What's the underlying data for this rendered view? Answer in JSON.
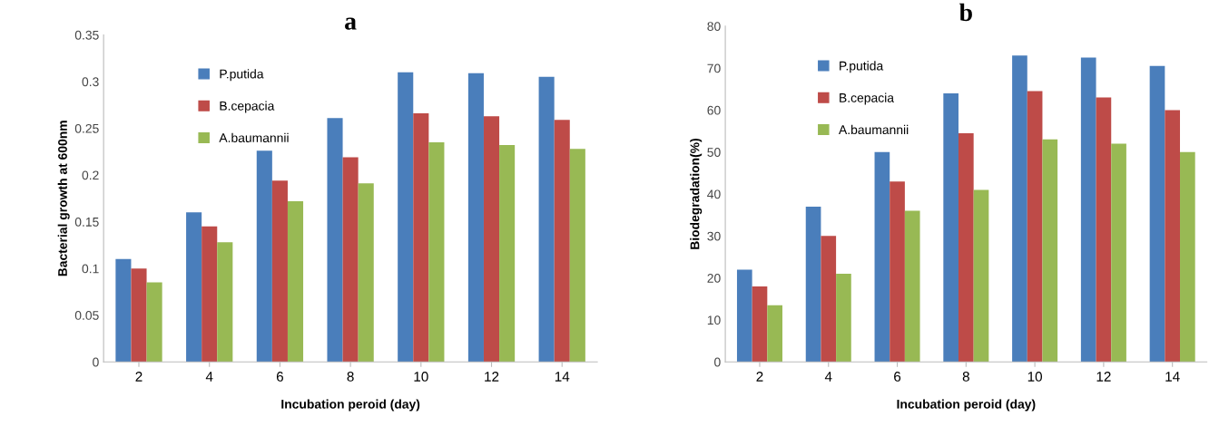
{
  "chart_data": [
    {
      "type": "bar",
      "title": "a",
      "xlabel": "Incubation peroid (day)",
      "ylabel": "Bacterial growth at 600nm",
      "categories": [
        "2",
        "4",
        "6",
        "8",
        "10",
        "12",
        "14"
      ],
      "series": [
        {
          "name": "P.putida",
          "color": "#4a7ebb",
          "values": [
            0.11,
            0.16,
            0.226,
            0.261,
            0.31,
            0.309,
            0.305
          ]
        },
        {
          "name": "B.cepacia",
          "color": "#be4b48",
          "values": [
            0.1,
            0.145,
            0.194,
            0.219,
            0.266,
            0.263,
            0.259
          ]
        },
        {
          "name": "A.baumannii",
          "color": "#98b954",
          "values": [
            0.085,
            0.128,
            0.172,
            0.191,
            0.235,
            0.232,
            0.228
          ]
        }
      ],
      "ylim": [
        0,
        0.35
      ],
      "yticks": [
        0,
        0.05,
        0.1,
        0.15,
        0.2,
        0.25,
        0.3,
        0.35
      ],
      "grid": false,
      "legend": "top left"
    },
    {
      "type": "bar",
      "title": "b",
      "xlabel": "Incubation peroid (day)",
      "ylabel": "Biodegradation(%)",
      "categories": [
        "2",
        "4",
        "6",
        "8",
        "10",
        "12",
        "14"
      ],
      "series": [
        {
          "name": "P.putida",
          "color": "#4a7ebb",
          "values": [
            22,
            37,
            50,
            64,
            73,
            72.5,
            70.5
          ]
        },
        {
          "name": "B.cepacia",
          "color": "#be4b48",
          "values": [
            18,
            30,
            43,
            54.5,
            64.5,
            63,
            60
          ]
        },
        {
          "name": "A.baumannii",
          "color": "#98b954",
          "values": [
            13.5,
            21,
            36,
            41,
            53,
            52,
            50
          ]
        }
      ],
      "ylim": [
        0,
        80
      ],
      "yticks": [
        0,
        10,
        20,
        30,
        40,
        50,
        60,
        70,
        80
      ],
      "grid": false,
      "legend": "top left"
    }
  ]
}
